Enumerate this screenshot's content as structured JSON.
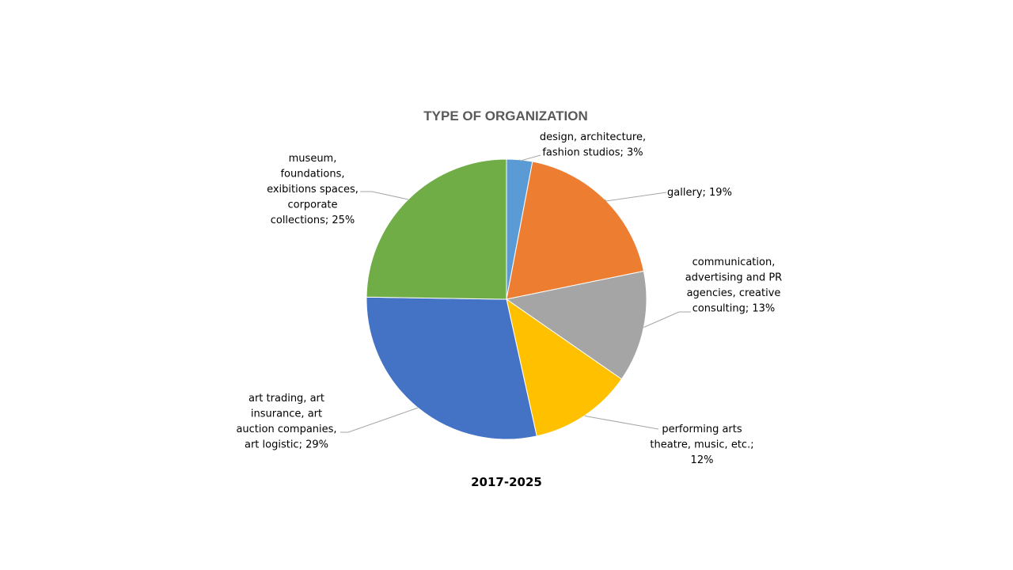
{
  "chart_data": {
    "type": "pie",
    "title": "TYPE OF ORGANIZATION",
    "caption": "2017-2025",
    "slices": [
      {
        "label_lines": [
          "design, architecture,",
          "fashion studios; 3%"
        ],
        "value": 3,
        "color": "#5b9bd5"
      },
      {
        "label_lines": [
          "gallery; 19%"
        ],
        "value": 19,
        "color": "#ed7d31"
      },
      {
        "label_lines": [
          "communication,",
          "advertising and PR",
          "agencies, creative",
          "consulting; 13%"
        ],
        "value": 13,
        "color": "#a5a5a5"
      },
      {
        "label_lines": [
          "performing  arts",
          "theatre, music, etc.;",
          "12%"
        ],
        "value": 12,
        "color": "#ffc000"
      },
      {
        "label_lines": [
          "art trading, art",
          "insurance, art",
          "auction companies,",
          "art logistic; 29%"
        ],
        "value": 29,
        "color": "#4472c4"
      },
      {
        "label_lines": [
          "museum,",
          "foundations,",
          "exibitions spaces,",
          "corporate",
          "collections; 25%"
        ],
        "value": 25,
        "color": "#70ad47"
      }
    ]
  }
}
